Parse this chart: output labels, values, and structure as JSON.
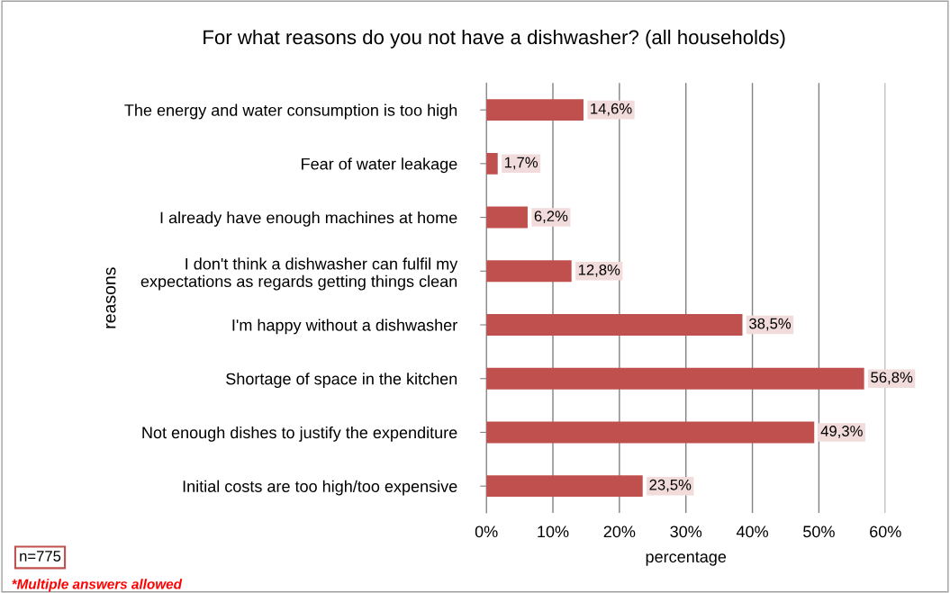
{
  "chart_data": {
    "type": "bar",
    "orientation": "horizontal",
    "title": "For what reasons do you not have a dishwasher? (all households)",
    "xlabel": "percentage",
    "ylabel": "reasons",
    "categories": [
      "The energy and water consumption is too high",
      "Fear of water leakage",
      "I already have enough machines at home",
      "I don't think a dishwasher can fulfil my\nexpectations as regards getting things clean",
      "I'm happy without a dishwasher",
      "Shortage of space in the kitchen",
      "Not enough dishes to justify the expenditure",
      "Initial costs are too high/too expensive"
    ],
    "values": [
      14.6,
      1.7,
      6.2,
      12.8,
      38.5,
      56.8,
      49.3,
      23.5
    ],
    "value_labels": [
      "14,6%",
      "1,7%",
      "6,2%",
      "12,8%",
      "38,5%",
      "56,8%",
      "49,3%",
      "23,5%"
    ],
    "color": "#c0504d",
    "xlim": [
      0,
      60
    ],
    "xticks": [
      {
        "value": 0,
        "label": "0%"
      },
      {
        "value": 10,
        "label": "10%"
      },
      {
        "value": 20,
        "label": "20%"
      },
      {
        "value": 30,
        "label": "30%"
      },
      {
        "value": 40,
        "label": "40%"
      },
      {
        "value": 50,
        "label": "50%"
      },
      {
        "value": 60,
        "label": "60%"
      }
    ],
    "grid": "x",
    "annotations": [
      "n=775",
      "*Multiple answers allowed"
    ]
  }
}
